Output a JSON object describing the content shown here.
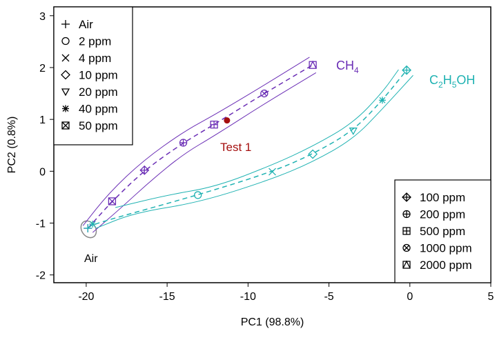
{
  "chart_data": {
    "type": "scatter",
    "xlabel": "PC1 (98.8%)",
    "ylabel": "PC2 (0.8%)",
    "xlim": [
      -22,
      5
    ],
    "ylim": [
      -2.15,
      3.17
    ],
    "xticks": [
      -20,
      -15,
      -10,
      -5,
      0,
      5
    ],
    "yticks": [
      -2,
      -1,
      0,
      1,
      2,
      3
    ],
    "xtick_labels": [
      "-20",
      "-15",
      "-10",
      "-5",
      "0",
      "5"
    ],
    "ytick_labels": [
      "-2",
      "-1",
      "0",
      "1",
      "2",
      "3"
    ],
    "colors": {
      "ch4": "#6a2db5",
      "ethanol": "#1fb2b2",
      "test": "#a50f0f",
      "air": "#888888"
    },
    "series": [
      {
        "name": "CH4",
        "label_main": "CH",
        "label_sub": "4",
        "color_key": "ch4",
        "points": [
          {
            "x": -19.9,
            "y": -1.1,
            "m": "plus"
          },
          {
            "x": -18.4,
            "y": -0.58,
            "m": "boxx"
          },
          {
            "x": -16.4,
            "y": 0.02,
            "m": "diamplus"
          },
          {
            "x": -14,
            "y": 0.55,
            "m": "circplus"
          },
          {
            "x": -12.1,
            "y": 0.9,
            "m": "boxplus"
          },
          {
            "x": -9,
            "y": 1.5,
            "m": "circx"
          },
          {
            "x": -6,
            "y": 2.05,
            "m": "boxtri"
          }
        ],
        "band_upper": [
          [
            -20.2,
            -1.05
          ],
          [
            -18.6,
            -0.42
          ],
          [
            -16.5,
            0.2
          ],
          [
            -14,
            0.76
          ],
          [
            -12,
            1.1
          ],
          [
            -9,
            1.66
          ],
          [
            -6.2,
            2.2
          ]
        ],
        "band_lower": [
          [
            -19.6,
            -1.18
          ],
          [
            -18,
            -0.75
          ],
          [
            -16,
            -0.18
          ],
          [
            -14,
            0.33
          ],
          [
            -12,
            0.7
          ],
          [
            -9,
            1.3
          ],
          [
            -5.8,
            1.9
          ]
        ]
      },
      {
        "name": "C2H5OH",
        "label_parts": [
          "C",
          "2",
          "H",
          "5",
          "OH"
        ],
        "color_key": "ethanol",
        "points": [
          {
            "x": -19.9,
            "y": -1.1,
            "m": "plus"
          },
          {
            "x": -19.6,
            "y": -1.02,
            "m": "star"
          },
          {
            "x": -13.1,
            "y": -0.46,
            "m": "circle"
          },
          {
            "x": -8.5,
            "y": -0.01,
            "m": "x"
          },
          {
            "x": -6,
            "y": 0.33,
            "m": "diamond"
          },
          {
            "x": -3.5,
            "y": 0.78,
            "m": "tri"
          },
          {
            "x": -1.7,
            "y": 1.37,
            "m": "star"
          },
          {
            "x": -0.2,
            "y": 1.95,
            "m": "diamplus"
          }
        ],
        "band_upper": [
          [
            -18.2,
            -0.7
          ],
          [
            -15,
            -0.46
          ],
          [
            -12,
            -0.3
          ],
          [
            -8.5,
            0.12
          ],
          [
            -6,
            0.48
          ],
          [
            -3.5,
            0.93
          ],
          [
            -1.7,
            1.52
          ],
          [
            -0.7,
            1.96
          ]
        ],
        "band_lower": [
          [
            -19.4,
            -1.1
          ],
          [
            -17,
            -0.8
          ],
          [
            -13,
            -0.6
          ],
          [
            -8.5,
            -0.15
          ],
          [
            -6,
            0.18
          ],
          [
            -3.5,
            0.62
          ],
          [
            -1.7,
            1.2
          ],
          [
            0.2,
            1.85
          ]
        ]
      }
    ],
    "test_point": {
      "x": -11.3,
      "y": 0.98,
      "label": "Test 1"
    },
    "air_label": "Air",
    "legend_left": {
      "position": "top-left",
      "entries": [
        {
          "m": "plus",
          "label": "Air"
        },
        {
          "m": "circle",
          "label": "2 ppm"
        },
        {
          "m": "x",
          "label": "4 ppm"
        },
        {
          "m": "diamond",
          "label": "10 ppm"
        },
        {
          "m": "tri",
          "label": "20 ppm"
        },
        {
          "m": "star",
          "label": "40 ppm"
        },
        {
          "m": "boxx",
          "label": "50 ppm"
        }
      ]
    },
    "legend_right": {
      "position": "bottom-right",
      "entries": [
        {
          "m": "diamplus",
          "label": "100 ppm"
        },
        {
          "m": "circplus",
          "label": "200 ppm"
        },
        {
          "m": "boxplus",
          "label": "500 ppm"
        },
        {
          "m": "circx",
          "label": "1000 ppm"
        },
        {
          "m": "boxtri",
          "label": "2000 ppm"
        }
      ]
    }
  }
}
